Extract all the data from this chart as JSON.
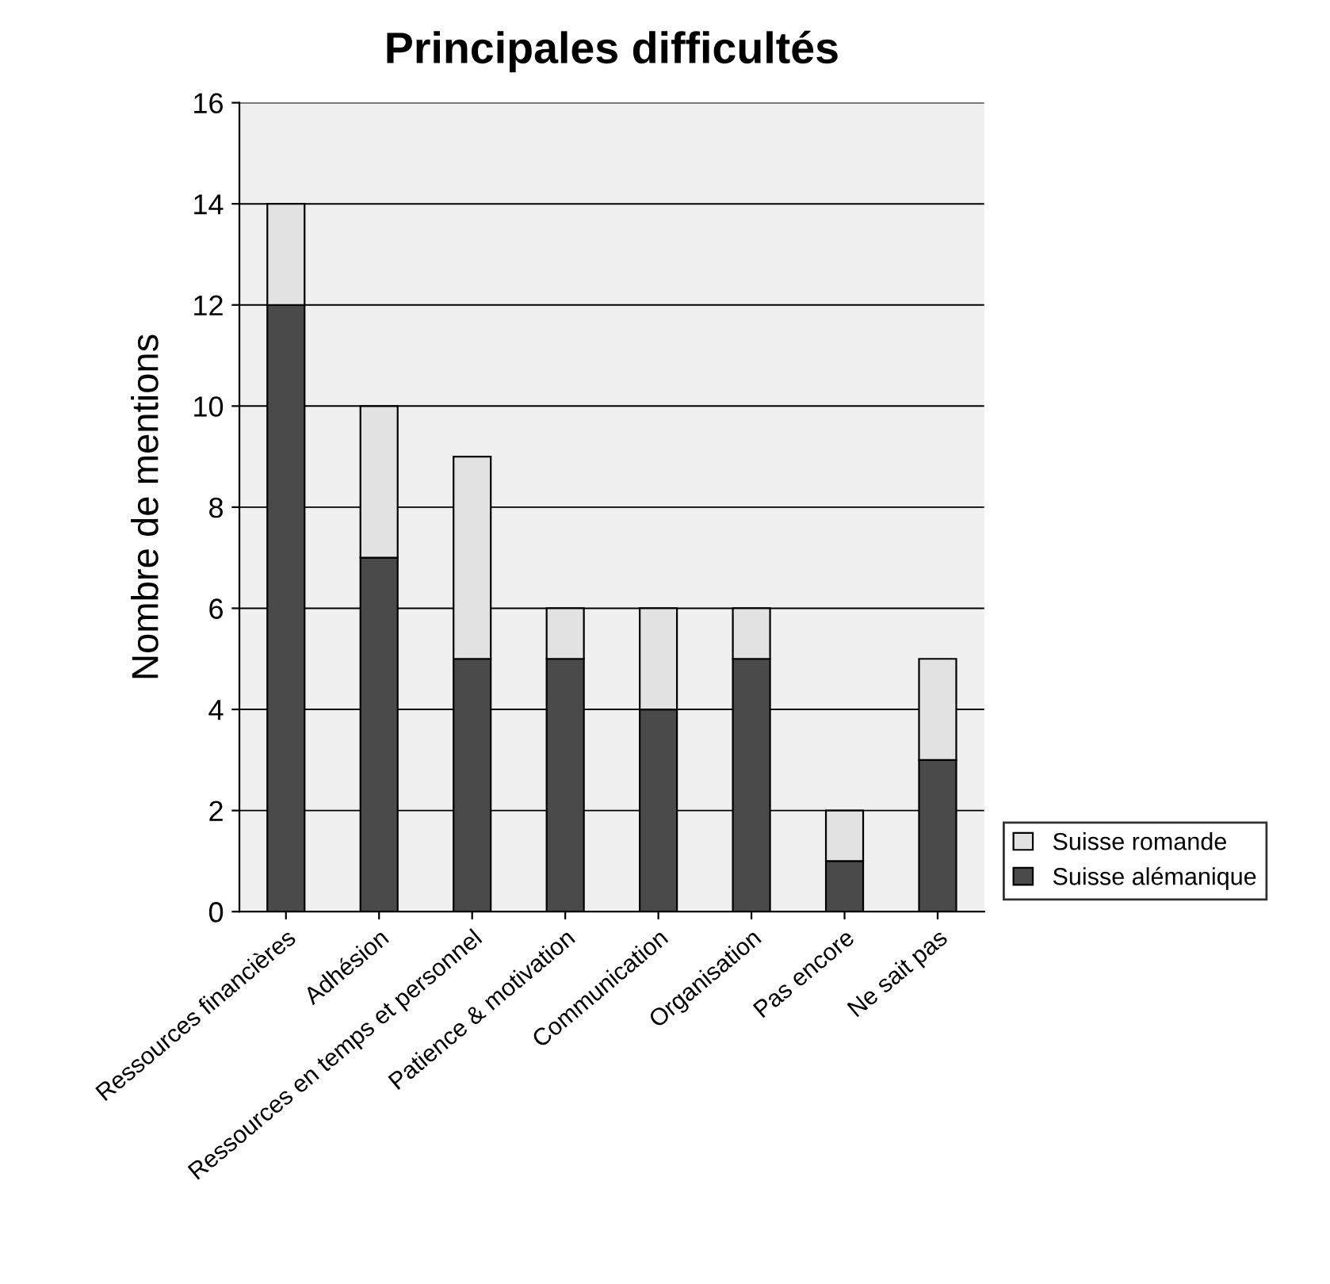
{
  "chart_data": {
    "type": "bar",
    "title": "Principales difficultés",
    "ylabel": "Nombre de mentions",
    "categories": [
      "Ressources financières",
      "Adhésion",
      "Ressources en temps et personnel",
      "Patience & motivation",
      "Communication",
      "Organisation",
      "Pas encore",
      "Ne sait pas"
    ],
    "stacked": true,
    "series": [
      {
        "name": "Suisse alémanique",
        "color": "#4a4a4a",
        "values": [
          12,
          7,
          5,
          5,
          4,
          5,
          1,
          3
        ]
      },
      {
        "name": "Suisse romande",
        "color": "#e2e2e2",
        "values": [
          2,
          3,
          4,
          1,
          2,
          1,
          1,
          2
        ]
      }
    ],
    "ylim": [
      0,
      16
    ],
    "yticks": [
      0,
      2,
      4,
      6,
      8,
      10,
      12,
      14,
      16
    ],
    "grid": "y",
    "legend": "right"
  }
}
